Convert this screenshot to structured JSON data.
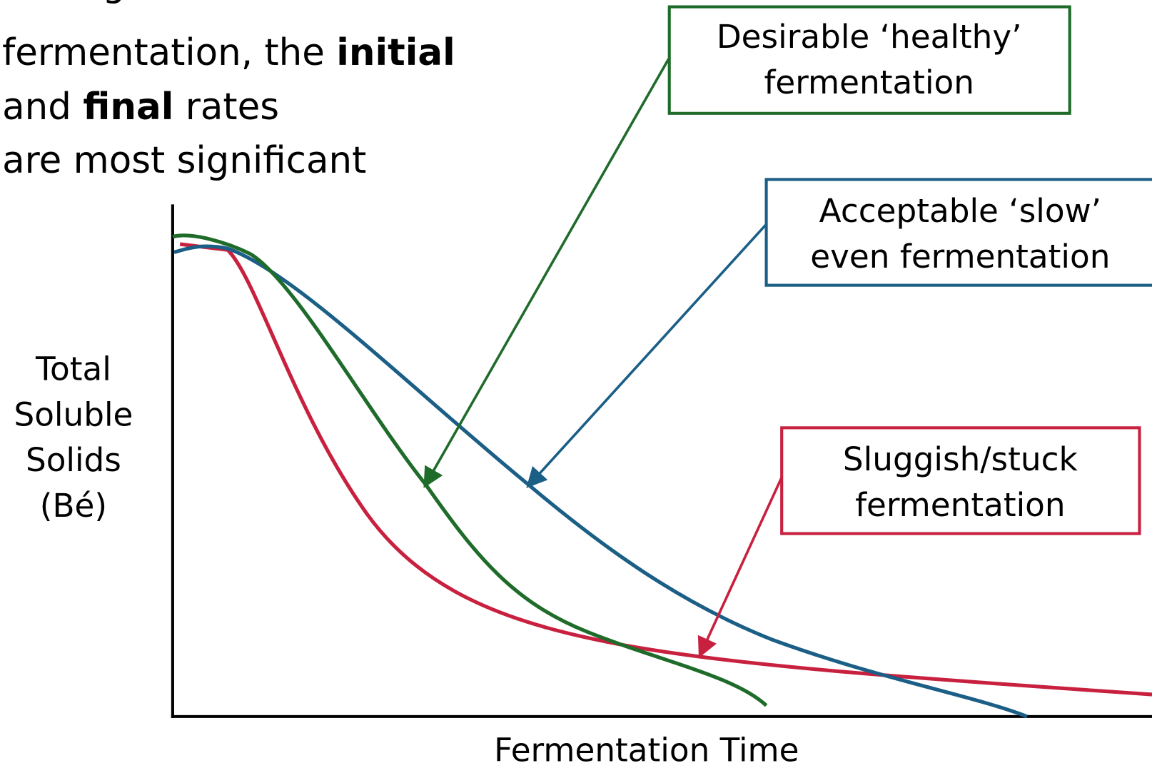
{
  "heading": {
    "lines": [
      [
        {
          "text": "During active",
          "bold": false
        }
      ],
      [
        {
          "text": "fermentation, the ",
          "bold": false
        },
        {
          "text": "initial",
          "bold": true
        }
      ],
      [
        {
          "text": "and ",
          "bold": false
        },
        {
          "text": "final",
          "bold": true
        },
        {
          "text": " rates",
          "bold": false
        }
      ],
      [
        {
          "text": "are most significant",
          "bold": false
        }
      ]
    ]
  },
  "y_axis_label": [
    "Total",
    "Soluble",
    "Solids",
    "(Bé)"
  ],
  "x_axis_label": "Fermentation Time",
  "callouts": [
    {
      "lines": [
        "Desirable ‘healthy’",
        "fermentation"
      ],
      "color": "#1e6b2a"
    },
    {
      "lines": [
        "Acceptable ‘slow’",
        "even fermentation"
      ],
      "color": "#1b5e86"
    },
    {
      "lines": [
        "Sluggish/stuck",
        "fermentation"
      ],
      "color": "#c8203f"
    }
  ]
}
